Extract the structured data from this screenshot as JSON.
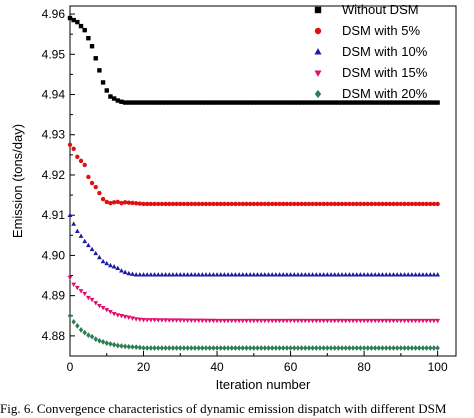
{
  "chart_data": {
    "type": "line",
    "xlabel": "Iteration number",
    "ylabel": "Emission (tons/day)",
    "xlim": [
      0,
      105
    ],
    "ylim": [
      4.875,
      4.962
    ],
    "xticks": [
      0,
      20,
      40,
      60,
      80,
      100
    ],
    "yticks": [
      4.88,
      4.89,
      4.9,
      4.91,
      4.92,
      4.93,
      4.94,
      4.95,
      4.96
    ],
    "grid": false,
    "legend_position": "top-right",
    "series": [
      {
        "name": "Without DSM",
        "color": "#000000",
        "marker": "square",
        "points": [
          [
            0,
            4.959
          ],
          [
            1,
            4.9585
          ],
          [
            2,
            4.958
          ],
          [
            3,
            4.957
          ],
          [
            4,
            4.956
          ],
          [
            5,
            4.954
          ],
          [
            6,
            4.952
          ],
          [
            7,
            4.949
          ],
          [
            8,
            4.946
          ],
          [
            9,
            4.943
          ],
          [
            10,
            4.941
          ],
          [
            11,
            4.9395
          ],
          [
            12,
            4.939
          ],
          [
            13,
            4.9385
          ],
          [
            14,
            4.9382
          ],
          [
            15,
            4.938
          ],
          [
            20,
            4.938
          ],
          [
            40,
            4.938
          ],
          [
            60,
            4.938
          ],
          [
            80,
            4.938
          ],
          [
            100,
            4.938
          ]
        ],
        "final_value": 4.938
      },
      {
        "name": "DSM with  5%",
        "color": "#e01010",
        "marker": "circle",
        "points": [
          [
            0,
            4.9275
          ],
          [
            1,
            4.9265
          ],
          [
            2,
            4.9245
          ],
          [
            3,
            4.9235
          ],
          [
            4,
            4.9225
          ],
          [
            5,
            4.9195
          ],
          [
            6,
            4.918
          ],
          [
            7,
            4.917
          ],
          [
            8,
            4.9155
          ],
          [
            9,
            4.914
          ],
          [
            10,
            4.9133
          ],
          [
            11,
            4.913
          ],
          [
            12,
            4.9132
          ],
          [
            13,
            4.9133
          ],
          [
            14,
            4.913
          ],
          [
            15,
            4.9132
          ],
          [
            20,
            4.9128
          ],
          [
            40,
            4.9128
          ],
          [
            60,
            4.9128
          ],
          [
            80,
            4.9128
          ],
          [
            100,
            4.9128
          ]
        ],
        "final_value": 4.9128
      },
      {
        "name": "DSM with 10%",
        "color": "#1c1ca0",
        "marker": "triangle-up",
        "points": [
          [
            0,
            4.91
          ],
          [
            1,
            4.9078
          ],
          [
            2,
            4.906
          ],
          [
            3,
            4.9048
          ],
          [
            4,
            4.9035
          ],
          [
            5,
            4.9025
          ],
          [
            6,
            4.9015
          ],
          [
            7,
            4.9005
          ],
          [
            8,
            4.8995
          ],
          [
            9,
            4.8985
          ],
          [
            10,
            4.898
          ],
          [
            11,
            4.8975
          ],
          [
            12,
            4.8972
          ],
          [
            13,
            4.8968
          ],
          [
            14,
            4.8962
          ],
          [
            15,
            4.8958
          ],
          [
            16,
            4.8955
          ],
          [
            18,
            4.8952
          ],
          [
            20,
            4.8952
          ],
          [
            40,
            4.8952
          ],
          [
            60,
            4.8952
          ],
          [
            80,
            4.8952
          ],
          [
            100,
            4.8952
          ]
        ],
        "final_value": 4.8952
      },
      {
        "name": "DSM with 15%",
        "color": "#e01070",
        "marker": "triangle-down",
        "points": [
          [
            0,
            4.8945
          ],
          [
            1,
            4.8928
          ],
          [
            2,
            4.892
          ],
          [
            3,
            4.8912
          ],
          [
            4,
            4.8905
          ],
          [
            5,
            4.8895
          ],
          [
            6,
            4.889
          ],
          [
            7,
            4.8882
          ],
          [
            8,
            4.8875
          ],
          [
            9,
            4.887
          ],
          [
            10,
            4.8865
          ],
          [
            11,
            4.886
          ],
          [
            12,
            4.8855
          ],
          [
            13,
            4.8852
          ],
          [
            14,
            4.885
          ],
          [
            15,
            4.8848
          ],
          [
            16,
            4.8846
          ],
          [
            17,
            4.8844
          ],
          [
            18,
            4.8842
          ],
          [
            19,
            4.8841
          ],
          [
            20,
            4.884
          ],
          [
            40,
            4.8838
          ],
          [
            60,
            4.8838
          ],
          [
            80,
            4.8838
          ],
          [
            100,
            4.8838
          ]
        ],
        "final_value": 4.8838
      },
      {
        "name": "DSM with  20%",
        "color": "#2e7d52",
        "marker": "diamond",
        "points": [
          [
            0,
            4.885
          ],
          [
            1,
            4.8835
          ],
          [
            2,
            4.8825
          ],
          [
            3,
            4.8815
          ],
          [
            4,
            4.8808
          ],
          [
            5,
            4.8802
          ],
          [
            6,
            4.8798
          ],
          [
            7,
            4.8792
          ],
          [
            8,
            4.8788
          ],
          [
            9,
            4.8785
          ],
          [
            10,
            4.8782
          ],
          [
            11,
            4.878
          ],
          [
            12,
            4.8778
          ],
          [
            13,
            4.8776
          ],
          [
            14,
            4.8775
          ],
          [
            15,
            4.8774
          ],
          [
            16,
            4.8773
          ],
          [
            18,
            4.8772
          ],
          [
            20,
            4.877
          ],
          [
            40,
            4.877
          ],
          [
            60,
            4.877
          ],
          [
            80,
            4.877
          ],
          [
            100,
            4.877
          ]
        ],
        "final_value": 4.877
      }
    ]
  },
  "caption": {
    "text": "Fig. 6. Convergence characteristics of dynamic emission dispatch with different DSM"
  }
}
